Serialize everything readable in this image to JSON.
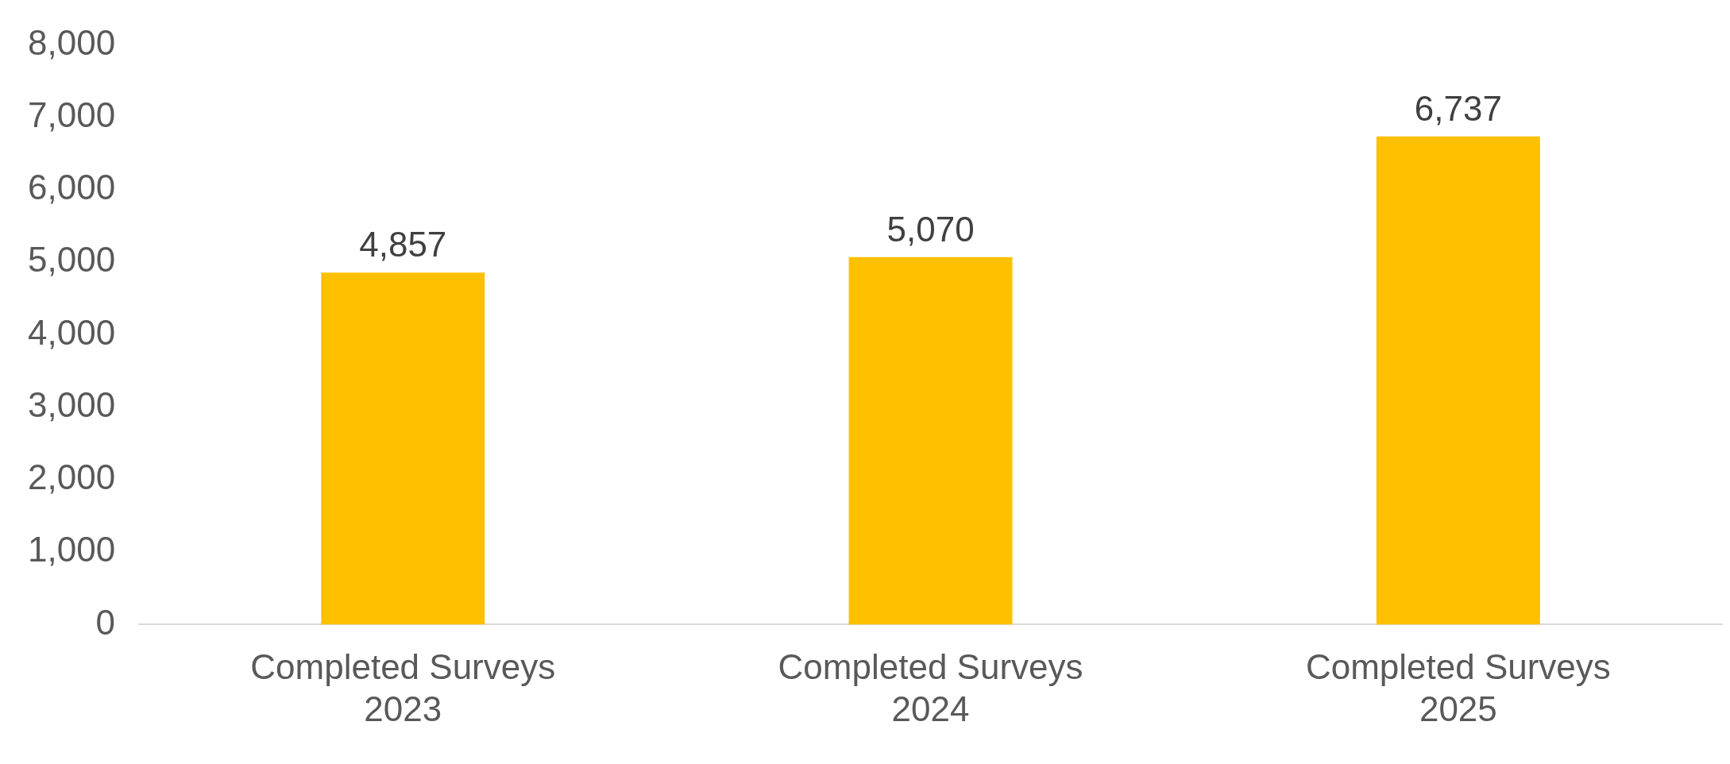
{
  "chart_data": {
    "type": "bar",
    "categories": [
      "Completed Surveys\n2023",
      "Completed Surveys\n2024",
      "Completed Surveys\n2025"
    ],
    "values": [
      4857,
      5070,
      6737
    ],
    "color": "#ffc000",
    "ylim": [
      0,
      8000
    ],
    "yticks": [
      {
        "value": 0,
        "label": "0"
      },
      {
        "value": 1000,
        "label": "1,000"
      },
      {
        "value": 2000,
        "label": "2,000"
      },
      {
        "value": 3000,
        "label": "3,000"
      },
      {
        "value": 4000,
        "label": "4,000"
      },
      {
        "value": 5000,
        "label": "5,000"
      },
      {
        "value": 6000,
        "label": "6,000"
      },
      {
        "value": 7000,
        "label": "7,000"
      },
      {
        "value": 8000,
        "label": "8,000"
      }
    ],
    "value_labels": [
      "4,857",
      "5,070",
      "6,737"
    ],
    "grid": false,
    "legend": false
  }
}
